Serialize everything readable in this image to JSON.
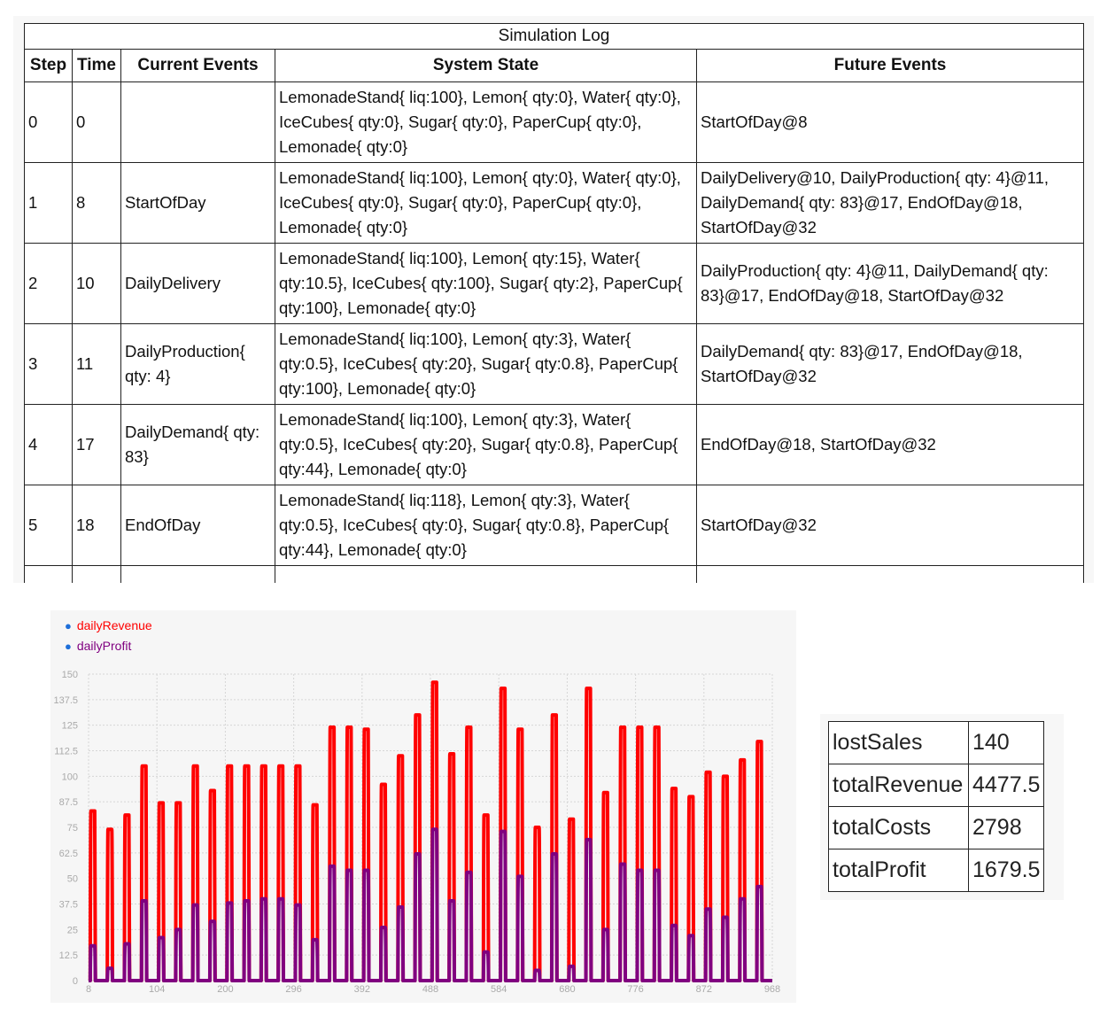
{
  "log": {
    "caption": "Simulation Log",
    "headers": [
      "Step",
      "Time",
      "Current Events",
      "System State",
      "Future Events"
    ],
    "rows": [
      {
        "step": "0",
        "time": "0",
        "current": "",
        "state": "LemonadeStand{ liq:100}, Lemon{ qty:0}, Water{ qty:0}, IceCubes{ qty:0}, Sugar{ qty:0}, PaperCup{ qty:0}, Lemonade{ qty:0}",
        "future": "StartOfDay@8"
      },
      {
        "step": "1",
        "time": "8",
        "current": "StartOfDay",
        "state": "LemonadeStand{ liq:100}, Lemon{ qty:0}, Water{ qty:0}, IceCubes{ qty:0}, Sugar{ qty:0}, PaperCup{ qty:0}, Lemonade{ qty:0}",
        "future": "DailyDelivery@10, DailyProduction{ qty: 4}@11, DailyDemand{ qty: 83}@17, EndOfDay@18, StartOfDay@32"
      },
      {
        "step": "2",
        "time": "10",
        "current": "DailyDelivery",
        "state": "LemonadeStand{ liq:100}, Lemon{ qty:15}, Water{ qty:10.5}, IceCubes{ qty:100}, Sugar{ qty:2}, PaperCup{ qty:100}, Lemonade{ qty:0}",
        "future": "DailyProduction{ qty: 4}@11, DailyDemand{ qty: 83}@17, EndOfDay@18, StartOfDay@32"
      },
      {
        "step": "3",
        "time": "11",
        "current": "DailyProduction{ qty: 4}",
        "state": "LemonadeStand{ liq:100}, Lemon{ qty:3}, Water{ qty:0.5}, IceCubes{ qty:20}, Sugar{ qty:0.8}, PaperCup{ qty:100}, Lemonade{ qty:0}",
        "future": "DailyDemand{ qty: 83}@17, EndOfDay@18, StartOfDay@32"
      },
      {
        "step": "4",
        "time": "17",
        "current": "DailyDemand{ qty: 83}",
        "state": "LemonadeStand{ liq:100}, Lemon{ qty:3}, Water{ qty:0.5}, IceCubes{ qty:20}, Sugar{ qty:0.8}, PaperCup{ qty:44}, Lemonade{ qty:0}",
        "future": "EndOfDay@18, StartOfDay@32"
      },
      {
        "step": "5",
        "time": "18",
        "current": "EndOfDay",
        "state": "LemonadeStand{ liq:118}, Lemon{ qty:3}, Water{ qty:0.5}, IceCubes{ qty:0}, Sugar{ qty:0.8}, PaperCup{ qty:44}, Lemonade{ qty:0}",
        "future": "StartOfDay@32"
      }
    ]
  },
  "chart_data": {
    "type": "line",
    "legend": [
      "dailyRevenue",
      "dailyProfit"
    ],
    "legend_position": "top-left",
    "x_ticks": [
      8,
      104,
      200,
      296,
      392,
      488,
      584,
      680,
      776,
      872,
      968
    ],
    "y_ticks": [
      0,
      12.5,
      25,
      37.5,
      50,
      62.5,
      75,
      87.5,
      100,
      112.5,
      125,
      137.5,
      150
    ],
    "xlim": [
      8,
      968
    ],
    "ylim": [
      0,
      150
    ],
    "grid": true,
    "day_start": [
      8,
      32,
      56,
      80,
      104,
      128,
      152,
      176,
      200,
      224,
      248,
      272,
      296,
      320,
      344,
      368,
      392,
      416,
      440,
      464,
      488,
      512,
      536,
      560,
      584,
      608,
      632,
      656,
      680,
      704,
      728,
      752,
      776,
      800,
      824,
      848,
      872,
      896,
      920,
      944
    ],
    "series": [
      {
        "name": "dailyRevenue",
        "color": "#ff0000",
        "values": [
          83,
          74,
          81,
          105,
          87,
          87,
          105,
          93,
          105,
          105,
          105,
          105,
          105,
          86,
          124,
          124,
          123,
          96,
          110,
          130,
          146,
          111,
          124,
          81,
          143,
          123,
          75,
          130,
          79,
          143,
          92,
          124,
          124,
          124,
          94,
          90,
          102,
          100,
          108,
          117
        ]
      },
      {
        "name": "dailyProfit",
        "color": "#800080",
        "values": [
          17,
          6,
          18,
          39,
          21,
          25,
          37,
          29,
          38,
          39,
          40,
          40,
          37,
          20,
          56,
          54,
          54,
          26,
          36,
          62,
          74,
          39,
          53,
          14,
          73,
          51,
          5,
          62,
          7,
          69,
          25,
          57,
          54,
          54,
          27,
          22,
          35,
          31,
          40,
          46
        ]
      }
    ]
  },
  "stats": [
    {
      "key": "lostSales",
      "value": "140"
    },
    {
      "key": "totalRevenue",
      "value": "4477.5"
    },
    {
      "key": "totalCosts",
      "value": "2798"
    },
    {
      "key": "totalProfit",
      "value": "1679.5"
    }
  ]
}
